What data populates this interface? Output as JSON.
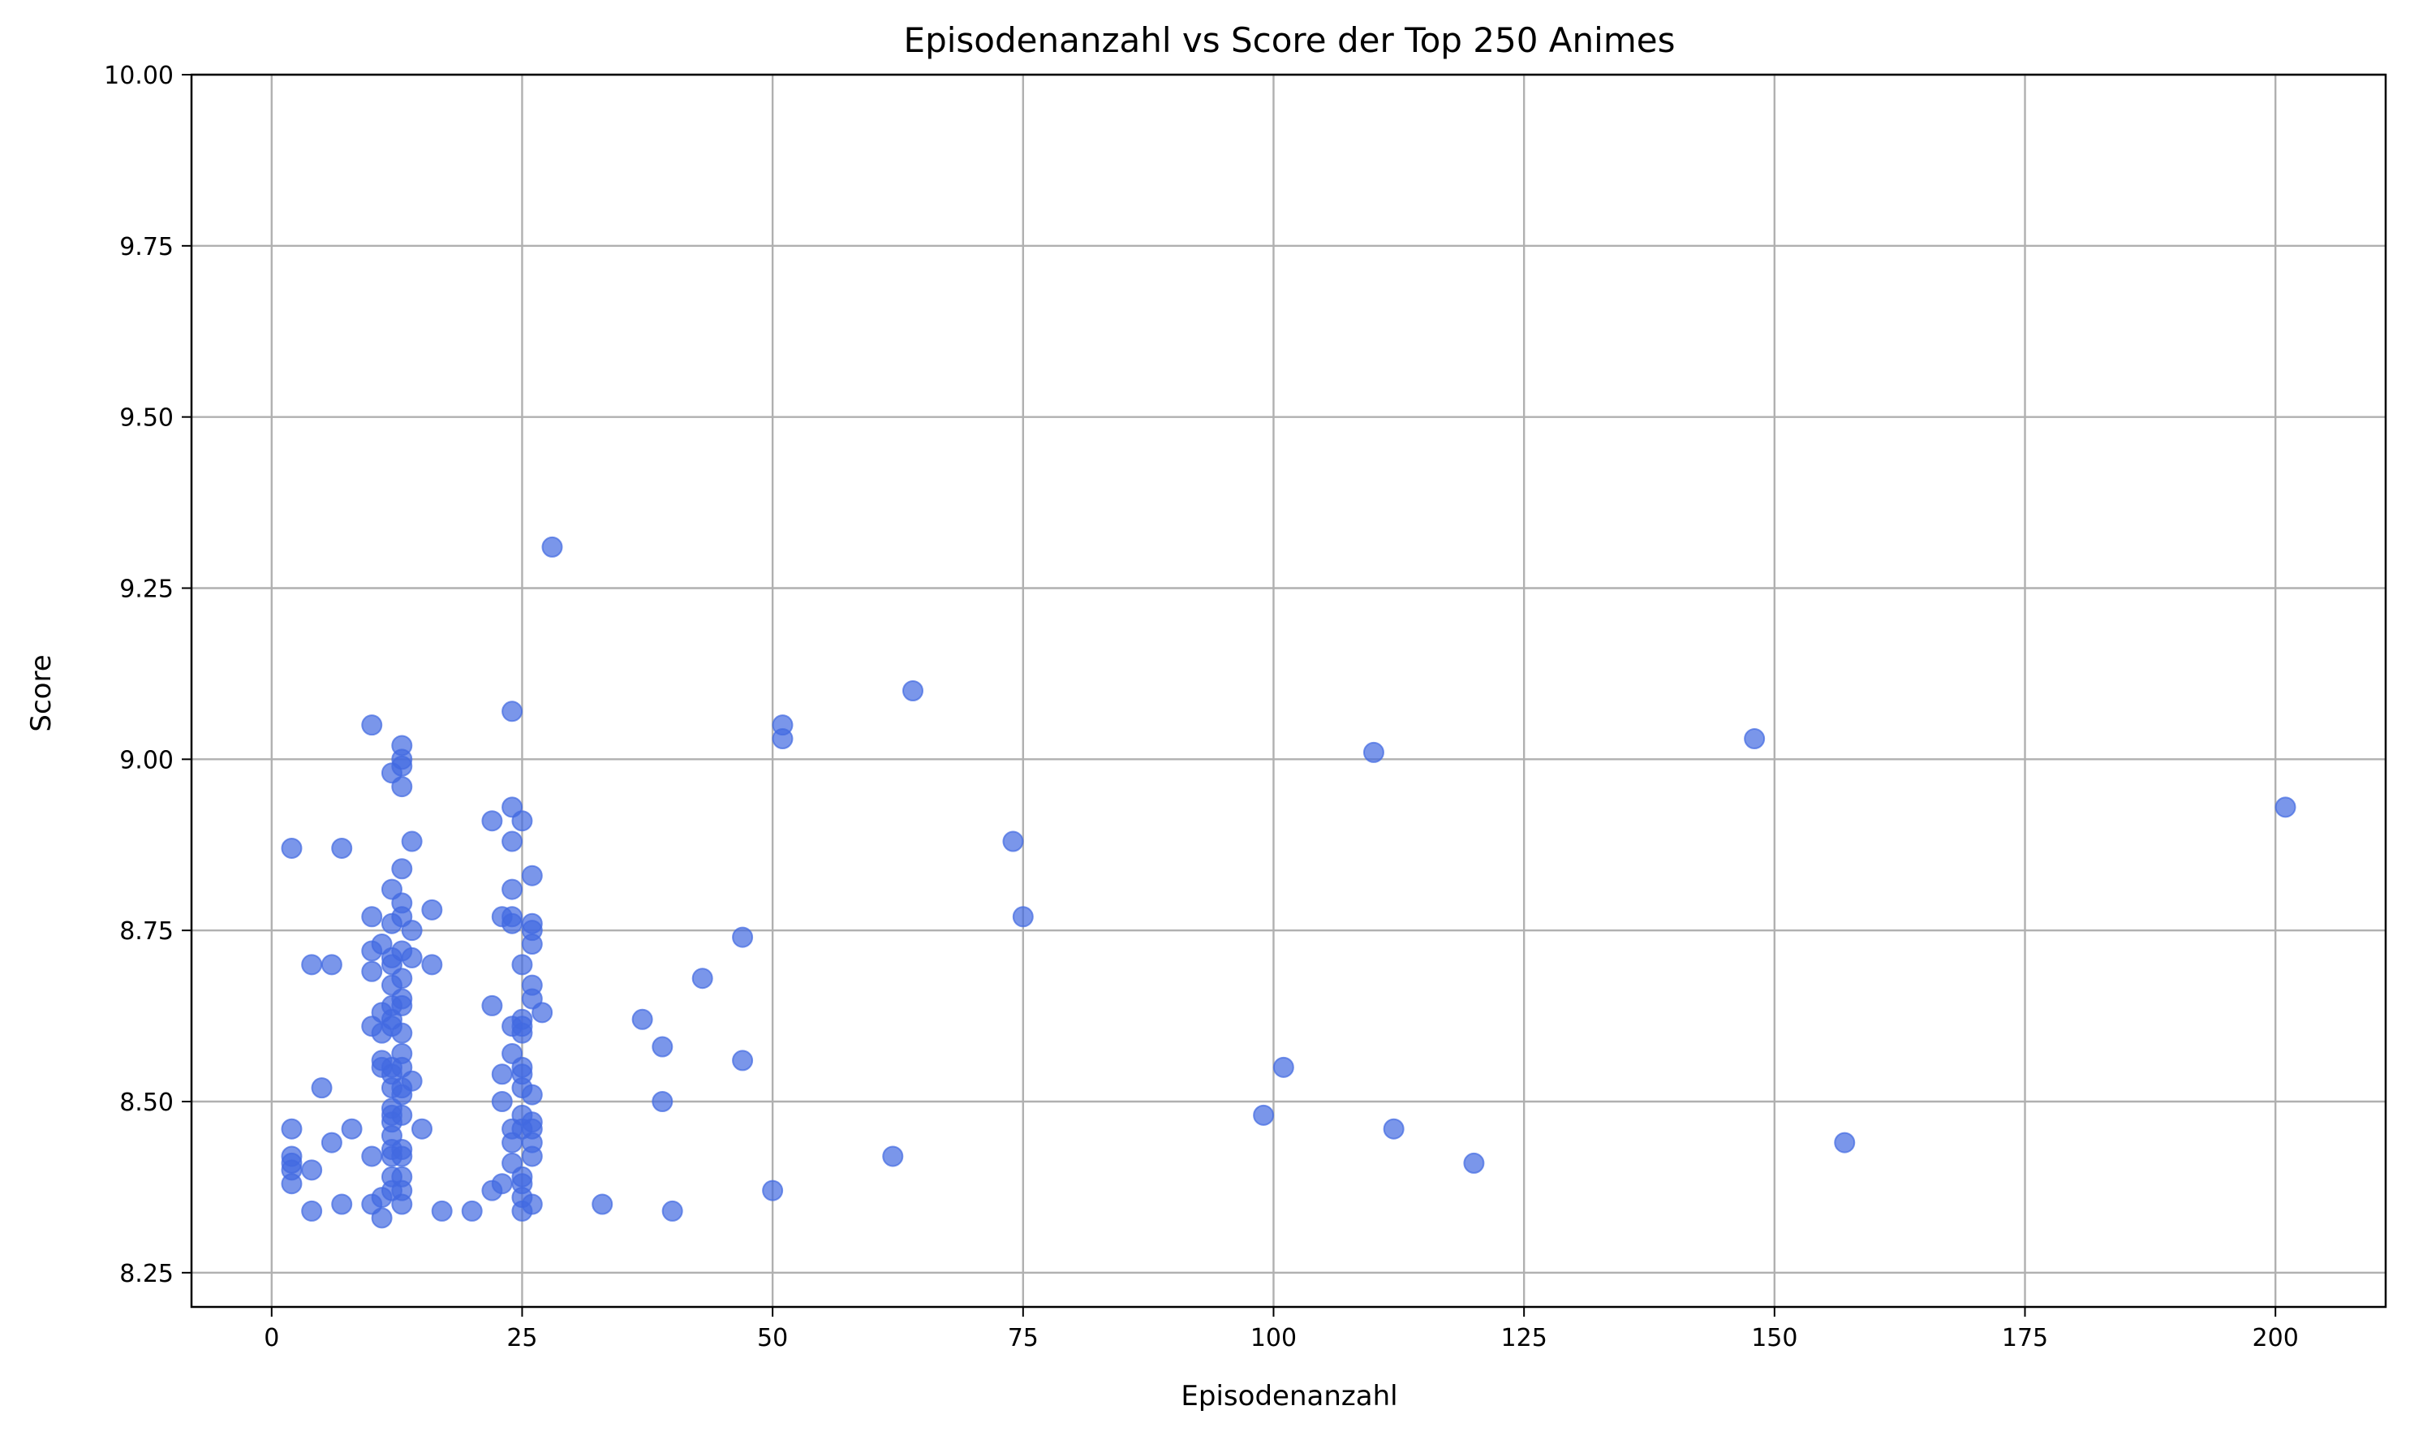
{
  "chart_data": {
    "type": "scatter",
    "title": "Episodenanzahl vs Score der Top 250 Animes",
    "xlabel": "Episodenanzahl",
    "ylabel": "Score",
    "xlim": [
      -8,
      211
    ],
    "ylim": [
      8.2,
      10.0
    ],
    "x_ticks": [
      0,
      25,
      50,
      75,
      100,
      125,
      150,
      175,
      200
    ],
    "x_tick_labels": [
      "0",
      "25",
      "50",
      "75",
      "100",
      "125",
      "150",
      "175",
      "200"
    ],
    "y_ticks": [
      8.25,
      8.5,
      8.75,
      9.0,
      9.25,
      9.5,
      9.75,
      10.0
    ],
    "y_tick_labels": [
      "8.25",
      "8.50",
      "8.75",
      "9.00",
      "9.25",
      "9.50",
      "9.75",
      "10.00"
    ],
    "grid": true,
    "marker_color": "#4169e1",
    "marker_opacity": 0.7,
    "series": [
      {
        "points": [
          [
            28,
            9.31
          ],
          [
            64,
            9.1
          ],
          [
            24,
            9.07
          ],
          [
            10,
            9.05
          ],
          [
            51,
            9.05
          ],
          [
            51,
            9.03
          ],
          [
            148,
            9.03
          ],
          [
            13,
            9.02
          ],
          [
            110,
            9.01
          ],
          [
            13,
            9.0
          ],
          [
            13,
            8.99
          ],
          [
            12,
            8.98
          ],
          [
            13,
            8.96
          ],
          [
            24,
            8.93
          ],
          [
            201,
            8.93
          ],
          [
            22,
            8.91
          ],
          [
            25,
            8.91
          ],
          [
            2,
            8.87
          ],
          [
            7,
            8.87
          ],
          [
            14,
            8.88
          ],
          [
            24,
            8.88
          ],
          [
            74,
            8.88
          ],
          [
            13,
            8.84
          ],
          [
            26,
            8.83
          ],
          [
            12,
            8.81
          ],
          [
            24,
            8.81
          ],
          [
            13,
            8.79
          ],
          [
            16,
            8.78
          ],
          [
            10,
            8.77
          ],
          [
            13,
            8.77
          ],
          [
            23,
            8.77
          ],
          [
            24,
            8.77
          ],
          [
            75,
            8.77
          ],
          [
            12,
            8.76
          ],
          [
            24,
            8.76
          ],
          [
            26,
            8.76
          ],
          [
            14,
            8.75
          ],
          [
            26,
            8.75
          ],
          [
            47,
            8.74
          ],
          [
            11,
            8.73
          ],
          [
            26,
            8.73
          ],
          [
            10,
            8.72
          ],
          [
            13,
            8.72
          ],
          [
            12,
            8.71
          ],
          [
            14,
            8.71
          ],
          [
            4,
            8.7
          ],
          [
            6,
            8.7
          ],
          [
            12,
            8.7
          ],
          [
            16,
            8.7
          ],
          [
            25,
            8.7
          ],
          [
            10,
            8.69
          ],
          [
            13,
            8.68
          ],
          [
            43,
            8.68
          ],
          [
            12,
            8.67
          ],
          [
            26,
            8.67
          ],
          [
            13,
            8.65
          ],
          [
            26,
            8.65
          ],
          [
            12,
            8.64
          ],
          [
            22,
            8.64
          ],
          [
            13,
            8.64
          ],
          [
            11,
            8.63
          ],
          [
            27,
            8.63
          ],
          [
            12,
            8.62
          ],
          [
            25,
            8.62
          ],
          [
            37,
            8.62
          ],
          [
            10,
            8.61
          ],
          [
            12,
            8.61
          ],
          [
            24,
            8.61
          ],
          [
            25,
            8.61
          ],
          [
            11,
            8.6
          ],
          [
            13,
            8.6
          ],
          [
            25,
            8.6
          ],
          [
            39,
            8.58
          ],
          [
            13,
            8.57
          ],
          [
            24,
            8.57
          ],
          [
            11,
            8.56
          ],
          [
            47,
            8.56
          ],
          [
            11,
            8.55
          ],
          [
            12,
            8.55
          ],
          [
            13,
            8.55
          ],
          [
            25,
            8.55
          ],
          [
            101,
            8.55
          ],
          [
            12,
            8.54
          ],
          [
            23,
            8.54
          ],
          [
            25,
            8.54
          ],
          [
            14,
            8.53
          ],
          [
            5,
            8.52
          ],
          [
            12,
            8.52
          ],
          [
            13,
            8.52
          ],
          [
            25,
            8.52
          ],
          [
            13,
            8.51
          ],
          [
            26,
            8.51
          ],
          [
            23,
            8.5
          ],
          [
            39,
            8.5
          ],
          [
            12,
            8.49
          ],
          [
            12,
            8.48
          ],
          [
            13,
            8.48
          ],
          [
            25,
            8.48
          ],
          [
            99,
            8.48
          ],
          [
            12,
            8.47
          ],
          [
            26,
            8.47
          ],
          [
            8,
            8.46
          ],
          [
            2,
            8.46
          ],
          [
            15,
            8.46
          ],
          [
            24,
            8.46
          ],
          [
            25,
            8.46
          ],
          [
            26,
            8.46
          ],
          [
            112,
            8.46
          ],
          [
            12,
            8.45
          ],
          [
            6,
            8.44
          ],
          [
            24,
            8.44
          ],
          [
            26,
            8.44
          ],
          [
            157,
            8.44
          ],
          [
            12,
            8.43
          ],
          [
            13,
            8.43
          ],
          [
            2,
            8.42
          ],
          [
            10,
            8.42
          ],
          [
            12,
            8.42
          ],
          [
            13,
            8.42
          ],
          [
            26,
            8.42
          ],
          [
            62,
            8.42
          ],
          [
            2,
            8.41
          ],
          [
            24,
            8.41
          ],
          [
            120,
            8.41
          ],
          [
            2,
            8.4
          ],
          [
            4,
            8.4
          ],
          [
            12,
            8.39
          ],
          [
            13,
            8.39
          ],
          [
            25,
            8.39
          ],
          [
            2,
            8.38
          ],
          [
            23,
            8.38
          ],
          [
            25,
            8.38
          ],
          [
            12,
            8.37
          ],
          [
            13,
            8.37
          ],
          [
            22,
            8.37
          ],
          [
            50,
            8.37
          ],
          [
            11,
            8.36
          ],
          [
            25,
            8.36
          ],
          [
            7,
            8.35
          ],
          [
            10,
            8.35
          ],
          [
            13,
            8.35
          ],
          [
            26,
            8.35
          ],
          [
            33,
            8.35
          ],
          [
            4,
            8.34
          ],
          [
            17,
            8.34
          ],
          [
            20,
            8.34
          ],
          [
            25,
            8.34
          ],
          [
            40,
            8.34
          ],
          [
            11,
            8.33
          ]
        ]
      }
    ]
  }
}
